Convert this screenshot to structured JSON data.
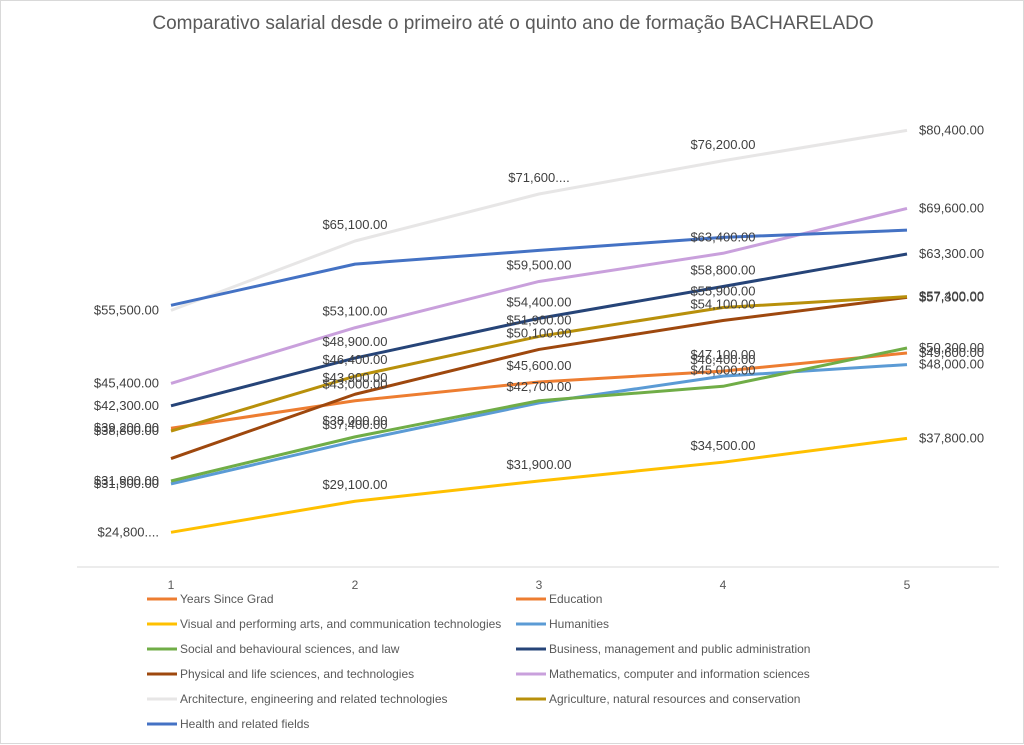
{
  "chart_data": {
    "type": "line",
    "title": "Comparativo salarial desde o primeiro até o quinto ano de formação BACHARELADO",
    "xlabel": "",
    "ylabel": "",
    "x": [
      "1",
      "2",
      "3",
      "4",
      "5"
    ],
    "ylim": [
      20000,
      90000
    ],
    "grid": false,
    "legend_position": "bottom",
    "series": [
      {
        "name": "Years Since Grad",
        "color": "#ED7D31",
        "values": [
          null,
          null,
          null,
          null,
          null
        ],
        "labels": [
          "",
          "",
          "",
          "",
          ""
        ]
      },
      {
        "name": "Education",
        "color": "#ED7D31",
        "values": [
          39200,
          43000,
          45600,
          47100,
          49600
        ],
        "labels": [
          "$39,200.00",
          "$43,000.00",
          "$45,600.00",
          "$47,100.00",
          "$49,600.00"
        ]
      },
      {
        "name": "Visual and performing arts, and communication technologies",
        "color": "#FFC000",
        "values": [
          24800,
          29100,
          31900,
          34500,
          37800
        ],
        "labels": [
          "$24,800....",
          "$29,100.00",
          "$31,900.00",
          "$34,500.00",
          "$37,800.00"
        ]
      },
      {
        "name": "Humanities",
        "color": "#5B9BD5",
        "values": [
          31500,
          37400,
          42700,
          46400,
          48000
        ],
        "labels": [
          "$31,500.00",
          "$37,400.00",
          "$42,700.00",
          "$46,400.00",
          "$48,000.00"
        ]
      },
      {
        "name": "Social and behavioural sciences, and law",
        "color": "#70AD47",
        "values": [
          31900,
          38000,
          43000,
          45000,
          50300
        ],
        "labels": [
          "$31,900.00",
          "$38,000.00",
          "",
          "$45,000.00",
          "$50,300.00"
        ]
      },
      {
        "name": "Business, management and public administration",
        "color": "#264478",
        "values": [
          42300,
          48900,
          54400,
          58800,
          63300
        ],
        "labels": [
          "$42,300.00",
          "$48,900.00",
          "$54,400.00",
          "$58,800.00",
          "$63,300.00"
        ]
      },
      {
        "name": "Physical and life sciences, and technologies",
        "color": "#9E480E",
        "values": [
          35000,
          43900,
          50100,
          54100,
          57300
        ],
        "labels": [
          "",
          "$43,900.00",
          "$50,100.00",
          "$54,100.00",
          "$57,300.00"
        ]
      },
      {
        "name": "Mathematics, computer and information sciences",
        "color": "#C9A0DC",
        "values": [
          45400,
          53100,
          59500,
          63400,
          69600
        ],
        "labels": [
          "$45,400.00",
          "$53,100.00",
          "$59,500.00",
          "$63,400.00",
          "$69,600.00"
        ]
      },
      {
        "name": "Architecture, engineering and related technologies",
        "color": "#E7E6E6",
        "values": [
          55500,
          65100,
          71600,
          76200,
          80400
        ],
        "labels": [
          "$55,500.00",
          "$65,100.00",
          "$71,600....",
          "$76,200.00",
          "$80,400.00"
        ]
      },
      {
        "name": "Agriculture, natural resources and conservation",
        "color": "#B8900B",
        "values": [
          38800,
          46400,
          51900,
          55900,
          57400
        ],
        "labels": [
          "$38,800.00",
          "$46,400.00",
          "$51,900.00",
          "$55,900.00",
          "$57,400.00"
        ]
      },
      {
        "name": "Health and related fields",
        "color": "#4472C4",
        "values": [
          56200,
          61900,
          63800,
          65600,
          66600
        ],
        "labels": [
          "",
          "",
          "",
          "",
          ""
        ]
      }
    ]
  }
}
